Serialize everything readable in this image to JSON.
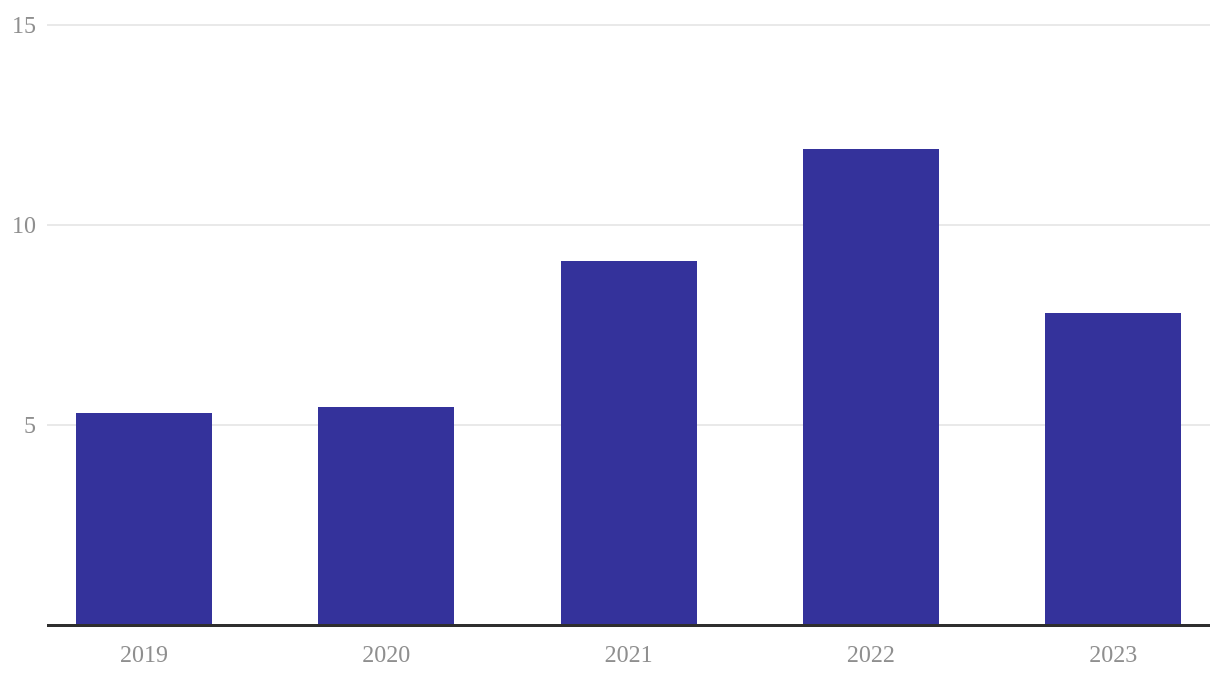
{
  "chart_data": {
    "type": "bar",
    "categories": [
      "2019",
      "2020",
      "2021",
      "2022",
      "2023"
    ],
    "values": [
      5.3,
      5.45,
      9.1,
      11.9,
      7.8
    ],
    "title": "",
    "xlabel": "",
    "ylabel": "",
    "ylim": [
      0,
      15
    ],
    "yticks": [
      5,
      10,
      15
    ],
    "grid": true,
    "legend": "none",
    "colors": {
      "bar": "#34329B",
      "gridline": "#E9E9E9",
      "axis_line": "#2E2E2E",
      "tick_label": "#8F8F8F",
      "background": "#FFFFFF"
    }
  }
}
